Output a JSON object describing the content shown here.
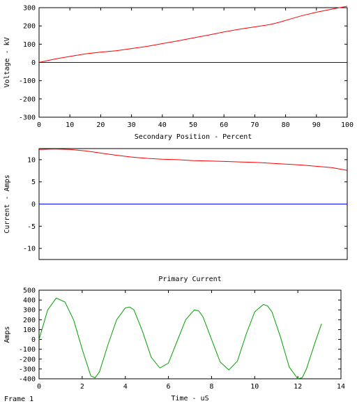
{
  "frame_label": "Frame 1",
  "chart_data": [
    {
      "type": "line",
      "title": "",
      "xlabel": "Secondary Position - Percent",
      "ylabel": "Voltage - kV",
      "xlim": [
        0,
        100
      ],
      "ylim": [
        -300,
        300
      ],
      "xticks": [
        0,
        10,
        20,
        30,
        40,
        50,
        60,
        70,
        80,
        90,
        100
      ],
      "yticks": [
        300,
        200,
        100,
        0,
        -100,
        -200,
        -300
      ],
      "colors": [
        "#ff0000",
        "#0000ff"
      ],
      "series": [
        {
          "x": [
            0,
            5,
            10,
            15,
            20,
            25,
            30,
            35,
            40,
            45,
            50,
            55,
            60,
            65,
            70,
            75,
            78,
            82,
            85,
            90,
            95,
            100
          ],
          "y": [
            0,
            18,
            33,
            47,
            56,
            64,
            76,
            88,
            103,
            118,
            134,
            150,
            167,
            182,
            195,
            208,
            220,
            240,
            255,
            275,
            292,
            308
          ]
        },
        {
          "x": [
            0,
            10,
            20,
            30,
            40,
            50,
            60,
            70,
            80,
            90,
            100
          ],
          "y": [
            0,
            0,
            0,
            0,
            0,
            0,
            0,
            0,
            0,
            0,
            0
          ]
        }
      ]
    },
    {
      "type": "line",
      "title": "",
      "xlabel": "",
      "ylabel": "Current - Amps",
      "xlim": [
        0,
        100
      ],
      "ylim": [
        -12.5,
        12.5
      ],
      "xticks": [],
      "yticks": [
        10,
        5,
        0,
        -5,
        -10
      ],
      "colors": [
        "#ff0000",
        "#0000ff"
      ],
      "series": [
        {
          "x": [
            0,
            5,
            10,
            15,
            20,
            25,
            30,
            35,
            40,
            45,
            50,
            55,
            60,
            65,
            70,
            75,
            80,
            85,
            90,
            95,
            100
          ],
          "y": [
            12.3,
            12.4,
            12.3,
            12.0,
            11.5,
            11.0,
            10.6,
            10.3,
            10.1,
            10.0,
            9.8,
            9.7,
            9.6,
            9.5,
            9.4,
            9.2,
            9.0,
            8.8,
            8.5,
            8.2,
            7.6
          ]
        },
        {
          "x": [
            0,
            10,
            20,
            30,
            40,
            50,
            60,
            70,
            80,
            90,
            100
          ],
          "y": [
            0,
            0,
            0,
            0,
            0,
            0,
            0,
            0,
            0,
            0,
            0
          ]
        }
      ]
    },
    {
      "type": "line",
      "title": "Primary Current",
      "xlabel": "Time - uS",
      "ylabel": "Amps",
      "xlim": [
        0,
        14
      ],
      "ylim": [
        -400,
        500
      ],
      "xticks": [
        0,
        2,
        4,
        6,
        8,
        10,
        12,
        14
      ],
      "yticks": [
        500,
        400,
        300,
        200,
        100,
        0,
        -100,
        -200,
        -300,
        -400
      ],
      "colors": [
        "#00a000"
      ],
      "series": [
        {
          "x": [
            0,
            0.4,
            0.8,
            1.2,
            1.6,
            2.0,
            2.4,
            2.6,
            2.8,
            3.2,
            3.6,
            4.0,
            4.2,
            4.4,
            4.8,
            5.2,
            5.6,
            6.0,
            6.4,
            6.8,
            7.2,
            7.4,
            7.6,
            8.0,
            8.4,
            8.8,
            9.2,
            9.6,
            10.0,
            10.4,
            10.6,
            10.8,
            11.2,
            11.6,
            12.0,
            12.2,
            12.4,
            12.8,
            13.1
          ],
          "y": [
            0,
            300,
            420,
            380,
            200,
            -100,
            -370,
            -390,
            -330,
            -50,
            200,
            320,
            330,
            300,
            80,
            -180,
            -290,
            -240,
            -20,
            200,
            300,
            290,
            230,
            0,
            -230,
            -310,
            -220,
            50,
            280,
            355,
            340,
            280,
            20,
            -280,
            -400,
            -390,
            -300,
            -30,
            160
          ]
        }
      ]
    }
  ]
}
